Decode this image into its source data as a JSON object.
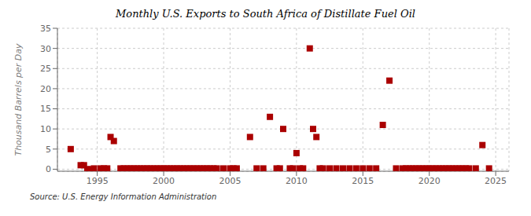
{
  "chart_data": {
    "type": "scatter",
    "title": "Monthly U.S. Exports to South Africa of Distillate Fuel Oil",
    "y_label": "Thousand Barrels per Day",
    "annotations": [
      "Source: U.S. Energy Information Administration"
    ],
    "x": [
      1993.0,
      1993.75,
      1994.0,
      1994.25,
      1994.5,
      1994.75,
      1995.25,
      1995.5,
      1995.75,
      1996.0,
      1996.25,
      1996.75,
      1997.0,
      1997.25,
      1997.5,
      1997.75,
      1998.0,
      1998.25,
      1998.5,
      1998.75,
      1999.0,
      1999.25,
      1999.5,
      1999.75,
      2000.0,
      2000.25,
      2000.5,
      2000.75,
      2001.0,
      2001.25,
      2001.5,
      2001.75,
      2002.0,
      2002.25,
      2002.5,
      2002.75,
      2003.0,
      2003.25,
      2003.5,
      2003.75,
      2004.0,
      2004.5,
      2005.0,
      2005.25,
      2005.5,
      2006.5,
      2007.0,
      2007.5,
      2008.0,
      2008.5,
      2008.75,
      2009.0,
      2009.5,
      2009.75,
      2010.0,
      2010.25,
      2010.5,
      2011.0,
      2011.25,
      2011.5,
      2011.75,
      2012.0,
      2012.5,
      2013.0,
      2013.5,
      2014.0,
      2014.5,
      2015.0,
      2015.5,
      2016.0,
      2016.5,
      2017.0,
      2017.5,
      2018.0,
      2018.25,
      2018.5,
      2018.75,
      2019.0,
      2019.25,
      2019.5,
      2019.75,
      2020.0,
      2020.25,
      2020.5,
      2020.75,
      2021.0,
      2021.25,
      2021.5,
      2021.75,
      2022.0,
      2022.25,
      2022.5,
      2022.75,
      2023.0,
      2023.5,
      2024.0,
      2024.5
    ],
    "values": [
      5.0,
      1.0,
      1.0,
      0.0,
      0.0,
      0.2,
      0.2,
      0.2,
      0.2,
      8.0,
      7.0,
      0.2,
      0.2,
      0.2,
      0.2,
      0.2,
      0.2,
      0.2,
      0.2,
      0.2,
      0.2,
      0.2,
      0.2,
      0.2,
      0.2,
      0.2,
      0.2,
      0.2,
      0.2,
      0.2,
      0.2,
      0.2,
      0.2,
      0.2,
      0.2,
      0.2,
      0.2,
      0.2,
      0.2,
      0.2,
      0.2,
      0.2,
      0.2,
      0.2,
      0.2,
      8.0,
      0.2,
      0.2,
      13.0,
      0.2,
      0.2,
      10.0,
      0.2,
      0.2,
      4.0,
      0.2,
      0.2,
      30.0,
      10.0,
      8.0,
      0.2,
      0.2,
      0.2,
      0.2,
      0.2,
      0.2,
      0.2,
      0.2,
      0.2,
      0.2,
      11.0,
      22.0,
      0.2,
      0.2,
      0.2,
      0.2,
      0.2,
      0.2,
      0.2,
      0.2,
      0.2,
      0.2,
      0.2,
      0.2,
      0.2,
      0.2,
      0.2,
      0.2,
      0.2,
      0.2,
      0.2,
      0.2,
      0.2,
      0.2,
      0.2,
      6.0,
      0.2
    ],
    "color": "#aa0000",
    "marker": "square",
    "xlim": [
      1992.0,
      2026.0
    ],
    "ylim": [
      -0.5,
      35
    ],
    "xticks": [
      1995,
      2000,
      2005,
      2010,
      2015,
      2020,
      2025
    ],
    "yticks": [
      0,
      5,
      10,
      15,
      20,
      25,
      30,
      35
    ],
    "grid": true
  }
}
